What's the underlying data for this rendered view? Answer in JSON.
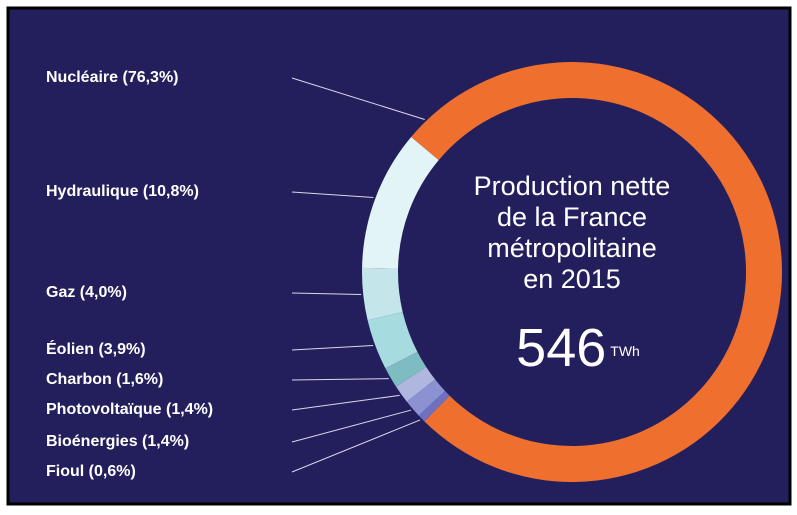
{
  "chart_data": {
    "type": "donut",
    "categories": [
      "Nucléaire (76,3%)",
      "Hydraulique (10,8%)",
      "Gaz (4,0%)",
      "Éolien (3,9%)",
      "Charbon (1,6%)",
      "Photovoltaïque (1,4%)",
      "Bioénergies (1,4%)",
      "Fioul (0,6%)"
    ],
    "values": [
      76.3,
      10.8,
      4.0,
      3.9,
      1.6,
      1.4,
      1.4,
      0.6
    ],
    "colors": [
      "#ef6f2e",
      "#e3f4f7",
      "#c4e6ea",
      "#a6dbe0",
      "#7dbcc1",
      "#b0b7df",
      "#8c91d2",
      "#6e70c0"
    ],
    "title_lines": [
      "Production nette",
      "de la France",
      "métropolitaine",
      "en 2015"
    ],
    "total": 546,
    "unit": "TWh"
  }
}
